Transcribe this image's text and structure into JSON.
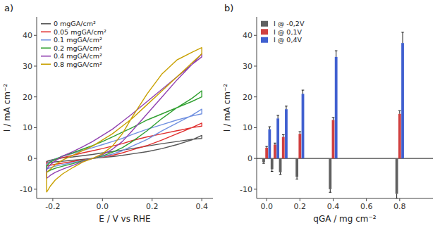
{
  "chart_data": [
    {
      "type": "line",
      "title": "a)",
      "x_label": "E / V vs RHE",
      "y_label": "I / mA cm⁻²",
      "xlim": [
        -0.265,
        0.445
      ],
      "ylim": [
        -13,
        46
      ],
      "xticks": [
        -0.2,
        {
          "value": 0.0,
          "label": "0.0"
        },
        0.2,
        0.4
      ],
      "yticks": [
        -10,
        0,
        10,
        20,
        30,
        40
      ],
      "grid": false,
      "legend": "upper left",
      "series": [
        {
          "name": "0 mgGA/cm²",
          "color": "#555555",
          "x": [
            -0.225,
            -0.21,
            -0.19,
            -0.16,
            -0.12,
            -0.08,
            -0.04,
            0.0,
            0.04,
            0.08,
            0.12,
            0.18,
            0.24,
            0.3,
            0.36,
            0.4,
            0.4,
            0.36,
            0.3,
            0.24,
            0.18,
            0.12,
            0.08,
            0.04,
            0.0,
            -0.04,
            -0.08,
            -0.12,
            -0.16,
            -0.19,
            -0.21,
            -0.225,
            -0.225
          ],
          "values": [
            -1.5,
            -1.3,
            -1.1,
            -0.9,
            -0.6,
            -0.3,
            0.0,
            0.3,
            0.6,
            1.0,
            1.5,
            2.2,
            3.2,
            4.5,
            6.0,
            7.5,
            6.5,
            6.2,
            5.5,
            4.8,
            4.0,
            3.2,
            2.7,
            2.2,
            1.8,
            1.3,
            0.9,
            0.5,
            0.2,
            -0.2,
            -0.6,
            -1.0,
            -1.5
          ]
        },
        {
          "name": "0.05 mgGA/cm²",
          "color": "#e03030",
          "x": [
            -0.225,
            -0.21,
            -0.19,
            -0.16,
            -0.12,
            -0.08,
            -0.04,
            0.0,
            0.04,
            0.08,
            0.12,
            0.18,
            0.24,
            0.3,
            0.36,
            0.4,
            0.4,
            0.36,
            0.3,
            0.24,
            0.18,
            0.12,
            0.08,
            0.04,
            0.0,
            -0.04,
            -0.08,
            -0.12,
            -0.16,
            -0.19,
            -0.21,
            -0.225,
            -0.225
          ],
          "values": [
            -2.5,
            -2.2,
            -1.9,
            -1.5,
            -1.0,
            -0.5,
            0.0,
            0.5,
            1.0,
            1.8,
            2.8,
            4.2,
            6.0,
            8.0,
            10.0,
            11.5,
            10.5,
            10.0,
            9.0,
            8.0,
            7.0,
            5.8,
            4.8,
            4.0,
            3.2,
            2.5,
            1.8,
            1.0,
            0.3,
            -0.4,
            -1.0,
            -1.5,
            -2.5
          ]
        },
        {
          "name": "0.1 mgGA/cm²",
          "color": "#7090e0",
          "x": [
            -0.225,
            -0.21,
            -0.19,
            -0.16,
            -0.12,
            -0.08,
            -0.04,
            0.0,
            0.04,
            0.08,
            0.12,
            0.18,
            0.24,
            0.3,
            0.36,
            0.4,
            0.4,
            0.36,
            0.3,
            0.24,
            0.18,
            0.12,
            0.08,
            0.04,
            0.0,
            -0.04,
            -0.08,
            -0.12,
            -0.16,
            -0.19,
            -0.21,
            -0.225,
            -0.225
          ],
          "values": [
            -3.5,
            -3.0,
            -2.5,
            -2.0,
            -1.4,
            -0.7,
            0.0,
            0.6,
            1.4,
            2.5,
            4.0,
            6.2,
            9.0,
            11.5,
            14.0,
            16.0,
            14.5,
            13.8,
            12.5,
            11.0,
            9.5,
            7.8,
            6.5,
            5.5,
            4.5,
            3.5,
            2.6,
            1.6,
            0.7,
            -0.2,
            -0.9,
            -2.0,
            -3.5
          ]
        },
        {
          "name": "0.2 mgGA/cm²",
          "color": "#30a030",
          "x": [
            -0.225,
            -0.21,
            -0.19,
            -0.16,
            -0.12,
            -0.08,
            -0.04,
            0.0,
            0.04,
            0.08,
            0.12,
            0.18,
            0.24,
            0.3,
            0.36,
            0.4,
            0.4,
            0.36,
            0.3,
            0.24,
            0.18,
            0.12,
            0.08,
            0.04,
            0.0,
            -0.04,
            -0.08,
            -0.12,
            -0.16,
            -0.19,
            -0.21,
            -0.225,
            -0.225
          ],
          "values": [
            -4.5,
            -3.8,
            -3.2,
            -2.5,
            -1.7,
            -0.8,
            0.0,
            0.8,
            2.0,
            3.5,
            5.5,
            9.0,
            13.0,
            16.5,
            19.5,
            22.0,
            20.0,
            18.5,
            16.5,
            14.5,
            12.5,
            10.0,
            8.5,
            7.0,
            5.5,
            4.2,
            3.0,
            1.8,
            0.8,
            -0.3,
            -1.2,
            -2.5,
            -4.5
          ]
        },
        {
          "name": "0.4 mgGA/cm²",
          "color": "#9040b0",
          "x": [
            -0.225,
            -0.21,
            -0.19,
            -0.16,
            -0.12,
            -0.08,
            -0.04,
            0.0,
            0.04,
            0.08,
            0.12,
            0.18,
            0.24,
            0.3,
            0.36,
            0.4,
            0.4,
            0.36,
            0.3,
            0.24,
            0.18,
            0.12,
            0.08,
            0.04,
            0.0,
            -0.04,
            -0.08,
            -0.12,
            -0.16,
            -0.19,
            -0.21,
            -0.225,
            -0.225
          ],
          "values": [
            -6.5,
            -5.5,
            -4.5,
            -3.5,
            -2.3,
            -1.0,
            0.0,
            1.2,
            3.0,
            5.5,
            9.0,
            14.5,
            20.0,
            25.5,
            30.5,
            34.0,
            33.0,
            30.5,
            26.5,
            22.5,
            18.5,
            14.5,
            12.0,
            9.5,
            7.5,
            5.5,
            3.8,
            2.2,
            0.8,
            -0.8,
            -2.0,
            -3.5,
            -6.5
          ]
        },
        {
          "name": "0.8 mgGA/cm²",
          "color": "#c8a000",
          "x": [
            -0.225,
            -0.21,
            -0.19,
            -0.16,
            -0.12,
            -0.08,
            -0.04,
            0.0,
            0.04,
            0.08,
            0.12,
            0.18,
            0.24,
            0.3,
            0.36,
            0.4,
            0.4,
            0.36,
            0.3,
            0.24,
            0.18,
            0.12,
            0.08,
            0.04,
            0.0,
            -0.04,
            -0.08,
            -0.12,
            -0.16,
            -0.19,
            -0.21,
            -0.225,
            -0.225
          ],
          "values": [
            -11.0,
            -9.0,
            -7.0,
            -5.0,
            -3.0,
            -1.2,
            0.0,
            1.5,
            4.0,
            8.0,
            13.5,
            21.0,
            27.5,
            32.0,
            34.5,
            36.0,
            34.0,
            31.0,
            26.5,
            22.0,
            17.5,
            13.0,
            10.5,
            8.0,
            6.0,
            4.0,
            2.5,
            1.0,
            -0.5,
            -2.0,
            -3.5,
            -4.5,
            -11.0
          ]
        }
      ]
    },
    {
      "type": "bar",
      "title": "b)",
      "x_label": "qGA / mg cm⁻²",
      "y_label": "I / mA cm⁻²",
      "xlim": [
        -0.06,
        1.0
      ],
      "ylim": [
        -13,
        46
      ],
      "xticks": [
        {
          "value": 0.0,
          "label": "0.0"
        },
        0.2,
        0.4,
        0.6,
        0.8
      ],
      "yticks": [
        -10,
        0,
        10,
        20,
        30,
        40
      ],
      "grid": false,
      "legend": "upper left",
      "x": [
        0.0,
        0.05,
        0.1,
        0.2,
        0.4,
        0.8
      ],
      "series": [
        {
          "name": "I @ -0,2V",
          "color": "#606060",
          "values": [
            -1.2,
            -3.5,
            -4.5,
            -6.0,
            -10.0,
            -11.5
          ],
          "errors": [
            0.4,
            0.7,
            0.7,
            0.7,
            1.0,
            1.5
          ]
        },
        {
          "name": "I @ 0,1V",
          "color": "#d04040",
          "values": [
            3.5,
            4.5,
            7.0,
            8.0,
            12.5,
            14.5
          ],
          "errors": [
            0.4,
            0.5,
            0.7,
            0.7,
            0.8,
            1.0
          ]
        },
        {
          "name": "I @ 0,4V",
          "color": "#4060d0",
          "values": [
            9.5,
            13.0,
            16.0,
            21.0,
            33.0,
            37.5
          ],
          "errors": [
            0.8,
            1.0,
            1.0,
            1.2,
            2.0,
            3.5
          ]
        }
      ]
    }
  ]
}
